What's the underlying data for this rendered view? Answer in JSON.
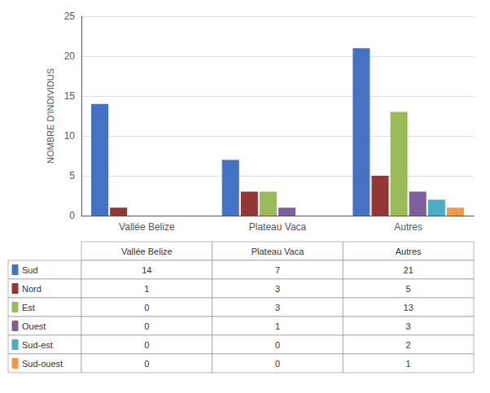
{
  "chart_data": {
    "type": "bar",
    "categories": [
      "Vallée Belize",
      "Plateau Vaca",
      "Autres"
    ],
    "series": [
      {
        "name": "Sud",
        "color": "#4472C4",
        "values": [
          14,
          7,
          21
        ]
      },
      {
        "name": "Nord",
        "color": "#943634",
        "values": [
          1,
          3,
          5
        ]
      },
      {
        "name": "Est",
        "color": "#9BBB59",
        "values": [
          0,
          3,
          13
        ]
      },
      {
        "name": "Ouest",
        "color": "#7F5F9B",
        "values": [
          0,
          1,
          3
        ]
      },
      {
        "name": "Sud-est",
        "color": "#4BACC6",
        "values": [
          0,
          0,
          2
        ]
      },
      {
        "name": "Sud-ouest",
        "color": "#F79646",
        "values": [
          0,
          0,
          1
        ]
      }
    ],
    "ylabel": "NOMBRE D'INDIVIDUS",
    "ylim": [
      0,
      25
    ],
    "yticks": [
      0,
      5,
      10,
      15,
      20,
      25
    ],
    "grid": true
  }
}
